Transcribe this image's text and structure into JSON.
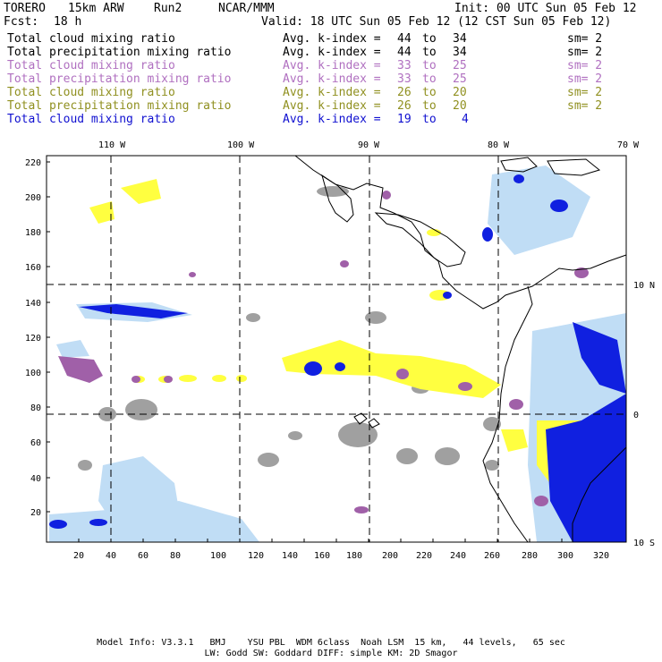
{
  "header": {
    "model": "TORERO",
    "resolution": "15km ARW",
    "run": "Run2",
    "org": "NCAR/MMM",
    "init": "Init: 00 UTC Sun 05 Feb 12",
    "fcst_label": "Fcst:",
    "fcst_value": "18 h",
    "valid": "Valid: 18 UTC Sun 05 Feb 12 (12 CST Sun 05 Feb 12)"
  },
  "colors": {
    "black": "#000000",
    "purple": "#b070c0",
    "olive": "#909020",
    "blue": "#1010d0",
    "gray_fill": "#a0a0a0",
    "purple_fill": "#a060a8",
    "yellow_fill": "#ffff40",
    "lightblue_fill": "#c0ddf5",
    "blue_fill": "#1020e0"
  },
  "legend": [
    {
      "field": "Total cloud mixing ratio",
      "stat": "Avg. k-index =",
      "a": "44",
      "to": "to",
      "b": "34",
      "sm": "sm= 2",
      "color": "black"
    },
    {
      "field": "Total precipitation mixing ratio",
      "stat": "Avg. k-index =",
      "a": "44",
      "to": "to",
      "b": "34",
      "sm": "sm= 2",
      "color": "black"
    },
    {
      "field": "Total cloud mixing ratio",
      "stat": "Avg. k-index =",
      "a": "33",
      "to": "to",
      "b": "25",
      "sm": "sm= 2",
      "color": "purple"
    },
    {
      "field": "Total precipitation mixing ratio",
      "stat": "Avg. k-index =",
      "a": "33",
      "to": "to",
      "b": "25",
      "sm": "sm= 2",
      "color": "purple"
    },
    {
      "field": "Total cloud mixing ratio",
      "stat": "Avg. k-index =",
      "a": "26",
      "to": "to",
      "b": "20",
      "sm": "sm= 2",
      "color": "olive"
    },
    {
      "field": "Total precipitation mixing ratio",
      "stat": "Avg. k-index =",
      "a": "26",
      "to": "to",
      "b": "20",
      "sm": "sm= 2",
      "color": "olive"
    },
    {
      "field": "Total cloud mixing ratio",
      "stat": "Avg. k-index =",
      "a": "19",
      "to": "to",
      "b": "4",
      "sm": "",
      "color": "blue"
    }
  ],
  "map": {
    "top_lon_labels": [
      "110 W",
      "100 W",
      "90 W",
      "80 W",
      "70 W"
    ],
    "right_lat_labels": [
      "10 N",
      "0",
      "10 S"
    ],
    "y_ticks": [
      "220",
      "200",
      "180",
      "160",
      "140",
      "120",
      "100",
      "80",
      "60",
      "40",
      "20"
    ],
    "x_ticks": [
      "20",
      "40",
      "60",
      "80",
      "100",
      "120",
      "140",
      "160",
      "180",
      "200",
      "220",
      "240",
      "260",
      "280",
      "300",
      "320"
    ]
  },
  "footer": {
    "line1": "Model Info: V3.3.1   BMJ    YSU PBL  WDM 6class  Noah LSM  15 km,   44 levels,   65 sec",
    "line2": "LW: Godd SW: Goddard DIFF: simple KM: 2D Smagor"
  }
}
